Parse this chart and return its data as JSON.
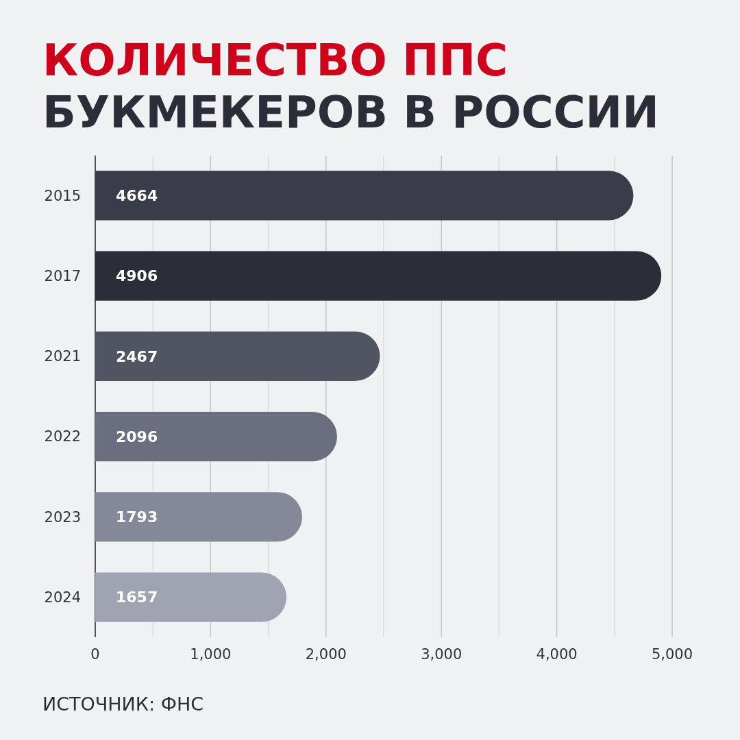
{
  "chart_data": {
    "type": "bar",
    "orientation": "horizontal",
    "title": "КОЛИЧЕСТВО ППС",
    "subtitle": "БУКМЕКЕРОВ В РОССИИ",
    "categories": [
      "2015",
      "2017",
      "2021",
      "2022",
      "2023",
      "2024"
    ],
    "values": [
      4664,
      4906,
      2467,
      2096,
      1793,
      1657
    ],
    "colors": [
      "#3a3d49",
      "#2b2e38",
      "#515463",
      "#6a6e7e",
      "#848898",
      "#a0a3b2"
    ],
    "xlim": [
      0,
      5000
    ],
    "xticks": [
      {
        "value": 0,
        "label": "0"
      },
      {
        "value": 500,
        "label": null
      },
      {
        "value": 1000,
        "label": "1,000"
      },
      {
        "value": 1500,
        "label": null
      },
      {
        "value": 2000,
        "label": "2,000"
      },
      {
        "value": 2500,
        "label": null
      },
      {
        "value": 3000,
        "label": "3,000"
      },
      {
        "value": 3500,
        "label": null
      },
      {
        "value": 4000,
        "label": "4,000"
      },
      {
        "value": 4500,
        "label": null
      },
      {
        "value": 5000,
        "label": "5,000"
      }
    ],
    "grid": "x",
    "data_labels": true,
    "annotations": [
      "ИСТОЧНИК: ФНС"
    ]
  }
}
